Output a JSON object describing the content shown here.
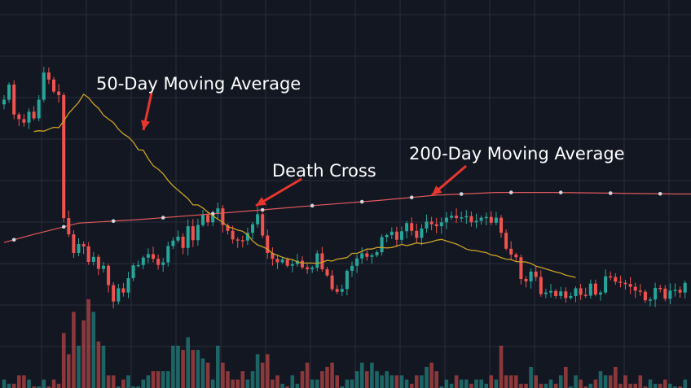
{
  "chart_data": {
    "type": "candlestick",
    "title": "",
    "xlabel": "",
    "ylabel": "",
    "ylim": [
      0,
      100
    ],
    "grid": true,
    "legend": "none",
    "colors": {
      "background": "#131722",
      "grid": "#2a2e39",
      "up": "#26a69a",
      "down": "#ef5350",
      "ma50": "#c9a227",
      "ma200": "#e05a5a",
      "ma200_dots": "#d1d4dc",
      "arrow": "#e8362f",
      "annotation_text": "#ffffff"
    },
    "candles": {
      "count": 138,
      "close": [
        74.3,
        78.2,
        70.5,
        69.3,
        68.4,
        71.2,
        69.5,
        74.3,
        81.3,
        79.5,
        76.4,
        75.5,
        43.8,
        39.6,
        34.8,
        37.1,
        36.5,
        32.5,
        33.8,
        30.7,
        31.5,
        26.5,
        22.3,
        25.7,
        24.6,
        28.3,
        31.6,
        31.7,
        33.6,
        34.5,
        33.3,
        31.7,
        32.4,
        36.6,
        38.0,
        39.0,
        36.1,
        41.7,
        38.1,
        42.0,
        44.6,
        42.7,
        45.0,
        46.3,
        42.0,
        40.5,
        38.3,
        38.1,
        38.0,
        40.0,
        42.2,
        44.8,
        39.3,
        34.8,
        33.3,
        32.4,
        33.1,
        31.5,
        31.9,
        32.8,
        31.1,
        30.6,
        31.0,
        34.7,
        30.6,
        29.0,
        25.5,
        24.8,
        25.5,
        30.2,
        31.5,
        33.4,
        34.7,
        33.8,
        34.2,
        35.0,
        38.9,
        39.4,
        40.3,
        38.2,
        40.4,
        42.5,
        40.5,
        38.7,
        41.1,
        42.9,
        42.2,
        41.7,
        42.7,
        43.9,
        44.4,
        43.8,
        44.0,
        44.3,
        42.7,
        43.1,
        43.9,
        44.1,
        42.6,
        43.9,
        40.0,
        35.9,
        34.4,
        33.7,
        28.1,
        27.5,
        30.0,
        28.6,
        24.2,
        24.6,
        25.0,
        23.7,
        24.9,
        23.2,
        23.7,
        25.7,
        24.0,
        23.8,
        26.9,
        24.1,
        24.6,
        28.8,
        28.6,
        27.4,
        27.1,
        26.8,
        26.1,
        25.1,
        24.8,
        22.6,
        22.8,
        25.8,
        25.6,
        23.0,
        25.1,
        25.3,
        24.6,
        27.1
      ],
      "ma50": [
        66.1,
        66.3,
        66.2,
        66.7,
        67.2,
        67.1,
        68.8,
        70.8,
        72.2,
        73.6,
        75.7,
        74.8,
        73.2,
        72.1,
        70.3,
        69.3,
        68.4,
        66.7,
        65.5,
        64.7,
        63.4,
        61.4,
        61.3,
        59.1,
        57.3,
        56.4,
        55.2,
        53.5,
        52.1,
        51.0,
        49.9,
        48.8,
        47.2,
        47.2,
        46.4,
        45.3,
        44.4,
        43.5,
        42.7,
        41.6,
        41.2,
        40.7,
        40.4,
        39.5,
        37.9,
        36.9,
        36.4,
        35.8,
        34.7,
        34.2,
        33.7,
        33.3,
        33.1,
        32.5,
        32.2,
        32.2,
        32.2,
        32.1,
        32.4,
        32.9,
        32.7,
        33.2,
        33.4,
        33.6,
        34.7,
        34.7,
        35.2,
        35.8,
        35.8,
        36.2,
        36.2,
        36.1,
        36.2,
        36.6,
        37.0,
        36.7,
        37.0,
        37.4,
        37.2,
        37.4,
        37.7,
        38.1,
        38.3,
        37.9,
        37.5,
        37.1,
        36.5,
        35.8,
        35.5,
        35.4,
        35.1,
        34.9,
        34.3,
        34.1,
        33.6,
        33.2,
        33.1,
        32.6,
        32.5,
        32.5,
        32.1,
        31.4,
        31.1,
        30.7,
        30.3,
        29.9,
        29.6,
        29.1,
        28.8,
        28.5
      ],
      "ma50_offset": 6,
      "volume": [
        2,
        1,
        1,
        3,
        3,
        2,
        0,
        0,
        2,
        0,
        2,
        1,
        13,
        8,
        18,
        10,
        16,
        21,
        18,
        11,
        10,
        3,
        3,
        0,
        2,
        3,
        0,
        0,
        2,
        3,
        4,
        4,
        4,
        4,
        10,
        10,
        9,
        12,
        9,
        9,
        7,
        6,
        2,
        10,
        6,
        4,
        2,
        2,
        4,
        2,
        4,
        8,
        6,
        8,
        2,
        3,
        1,
        0,
        3,
        1,
        4,
        6,
        2,
        2,
        4,
        5,
        6,
        3,
        0,
        2,
        2,
        4,
        6,
        4,
        6,
        4,
        3,
        4,
        3,
        3,
        3,
        2,
        1,
        3,
        3,
        5,
        6,
        4,
        0,
        2,
        1,
        3,
        2,
        2,
        1,
        2,
        2,
        1,
        3,
        2,
        10,
        3,
        3,
        3,
        1,
        1,
        5,
        3,
        1,
        1,
        2,
        1,
        3,
        5,
        0,
        3,
        2,
        0,
        1,
        2,
        4,
        3,
        3,
        5,
        1,
        3,
        1,
        1,
        3,
        0,
        2,
        1,
        1,
        2,
        1,
        0,
        0,
        2
      ]
    },
    "ma200": {
      "points": [
        [
          0,
          37.5
        ],
        [
          6,
          39.6
        ],
        [
          15,
          42.5
        ],
        [
          27,
          43.4
        ],
        [
          39,
          44.6
        ],
        [
          51,
          45.8
        ],
        [
          63,
          47.1
        ],
        [
          75,
          48.3
        ],
        [
          87,
          49.7
        ],
        [
          99,
          50.4
        ],
        [
          111,
          50.4
        ],
        [
          123,
          50.2
        ],
        [
          135,
          50.0
        ],
        [
          137,
          50.0
        ]
      ],
      "dot_indices": [
        2,
        12,
        22,
        32,
        42,
        52,
        62,
        72,
        82,
        92,
        102,
        112,
        122,
        132
      ]
    },
    "annotations": [
      {
        "id": "ma50",
        "text": "50-Day Moving Average"
      },
      {
        "id": "death-cross",
        "text": "Death Cross"
      },
      {
        "id": "ma200",
        "text": "200-Day Moving Average"
      }
    ]
  }
}
